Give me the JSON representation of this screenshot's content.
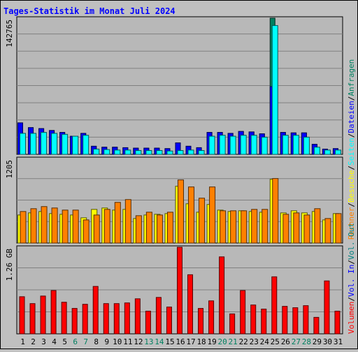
{
  "title": "Tages-Statistik im Monat Juli 2024",
  "colors": {
    "background": "#C0C0C0",
    "panel": "#B8B8B8",
    "title": "#0000FF",
    "grid": "#808080",
    "border": "#000000",
    "weekend_label": "#008060",
    "weekday_label": "#000000",
    "hits": "#008060",
    "files": "#0000FF",
    "pages": "#00FFFF",
    "visits": "#FFFF00",
    "sites": "#FF8000",
    "kbytes": "#FF0000",
    "kbin": "#0000FF",
    "kbout": "#008080"
  },
  "right_legend": {
    "top": [
      {
        "text": "Anfragen",
        "color": "#008060"
      },
      {
        "text": "Dateien",
        "color": "#0000FF"
      },
      {
        "text": "Seiten",
        "color": "#00FFFF"
      },
      {
        "text": "Besuche",
        "color": "#FFFF00"
      },
      {
        "text": "Rechner",
        "color": "#FF8000"
      }
    ],
    "bottom": [
      {
        "text": "Vol. Out",
        "color": "#008080"
      },
      {
        "text": "Vol. In",
        "color": "#0000FF"
      },
      {
        "text": "Volumen",
        "color": "#FF0000"
      }
    ],
    "separator": "/"
  },
  "chart_data": {
    "type": "bar",
    "title": "Tages-Statistik im Monat Juli 2024",
    "categories": [
      "1",
      "2",
      "3",
      "4",
      "5",
      "6",
      "7",
      "8",
      "9",
      "10",
      "11",
      "12",
      "13",
      "14",
      "15",
      "16",
      "17",
      "18",
      "19",
      "20",
      "21",
      "22",
      "23",
      "24",
      "25",
      "26",
      "27",
      "28",
      "29",
      "30",
      "31"
    ],
    "weekend_days": [
      "6",
      "7",
      "13",
      "14",
      "20",
      "21",
      "27",
      "28"
    ],
    "panels": [
      {
        "name": "top",
        "max_label": "142765",
        "ymax": 142765,
        "series": [
          {
            "name": "Anfragen",
            "color": "#008060",
            "values": [
              33000,
              28000,
              27000,
              25000,
              23000,
              19000,
              22000,
              8500,
              7500,
              7500,
              7000,
              6500,
              6500,
              6500,
              6000,
              12000,
              8500,
              7000,
              23000,
              23000,
              22000,
              24000,
              23500,
              21500,
              142765,
              23000,
              22500,
              22500,
              10500,
              5500,
              6000
            ]
          },
          {
            "name": "Dateien",
            "color": "#0000FF",
            "values": [
              33000,
              28000,
              27000,
              25000,
              23000,
              19000,
              22000,
              8500,
              7500,
              7500,
              7000,
              6500,
              6500,
              6500,
              6000,
              12000,
              8500,
              7000,
              23000,
              23000,
              22000,
              24000,
              23500,
              21500,
              71000,
              23000,
              22500,
              22500,
              10500,
              5500,
              6000
            ]
          },
          {
            "name": "Seiten",
            "color": "#00FFFF",
            "values": [
              22000,
              22000,
              23000,
              22000,
              21000,
              19000,
              20000,
              5500,
              5000,
              4500,
              4500,
              4000,
              4000,
              4000,
              3500,
              4000,
              4500,
              4000,
              19000,
              20000,
              19000,
              20000,
              20000,
              18000,
              135000,
              20000,
              20000,
              18000,
              7500,
              4500,
              4500
            ]
          }
        ]
      },
      {
        "name": "middle",
        "max_label": "1205",
        "ymax": 1205,
        "series": [
          {
            "name": "Besuche",
            "color": "#FFFF00",
            "values": [
              400,
              430,
              450,
              420,
              410,
              400,
              360,
              480,
              500,
              470,
              480,
              350,
              400,
              410,
              420,
              810,
              560,
              440,
              550,
              470,
              450,
              460,
              450,
              440,
              910,
              430,
              460,
              430,
              450,
              330,
              420
            ]
          },
          {
            "name": "Rechner",
            "color": "#FF8000",
            "values": [
              450,
              490,
              520,
              500,
              470,
              470,
              330,
              400,
              480,
              580,
              620,
              390,
              440,
              400,
              440,
              900,
              800,
              640,
              800,
              460,
              460,
              460,
              480,
              480,
              920,
              410,
              430,
              400,
              490,
              350,
              420
            ]
          }
        ]
      },
      {
        "name": "bottom",
        "max_label": "1.26 GB",
        "ymax": 1.26,
        "unit": "GB",
        "series": [
          {
            "name": "Vol. Out",
            "color": "#008080",
            "values": [
              0,
              0,
              0,
              0,
              0,
              0,
              0,
              0,
              0,
              0,
              0,
              0,
              0,
              0,
              0,
              0,
              0,
              0,
              0,
              0,
              0,
              0,
              0,
              0,
              0,
              0,
              0,
              0,
              0,
              0,
              0
            ]
          },
          {
            "name": "Vol. In",
            "color": "#0000FF",
            "values": [
              0,
              0,
              0,
              0,
              0,
              0,
              0,
              0,
              0,
              0,
              0,
              0,
              0,
              0,
              0,
              0,
              0,
              0,
              0,
              0,
              0,
              0,
              0,
              0,
              0,
              0,
              0,
              0,
              0,
              0,
              0
            ]
          },
          {
            "name": "Volumen",
            "color": "#FF0000",
            "values": [
              0.54,
              0.44,
              0.55,
              0.63,
              0.46,
              0.37,
              0.43,
              0.69,
              0.44,
              0.44,
              0.45,
              0.51,
              0.33,
              0.53,
              0.39,
              1.26,
              0.86,
              0.37,
              0.48,
              1.12,
              0.29,
              0.63,
              0.42,
              0.36,
              0.83,
              0.4,
              0.38,
              0.41,
              0.24,
              0.77,
              0.33
            ]
          }
        ]
      }
    ]
  }
}
